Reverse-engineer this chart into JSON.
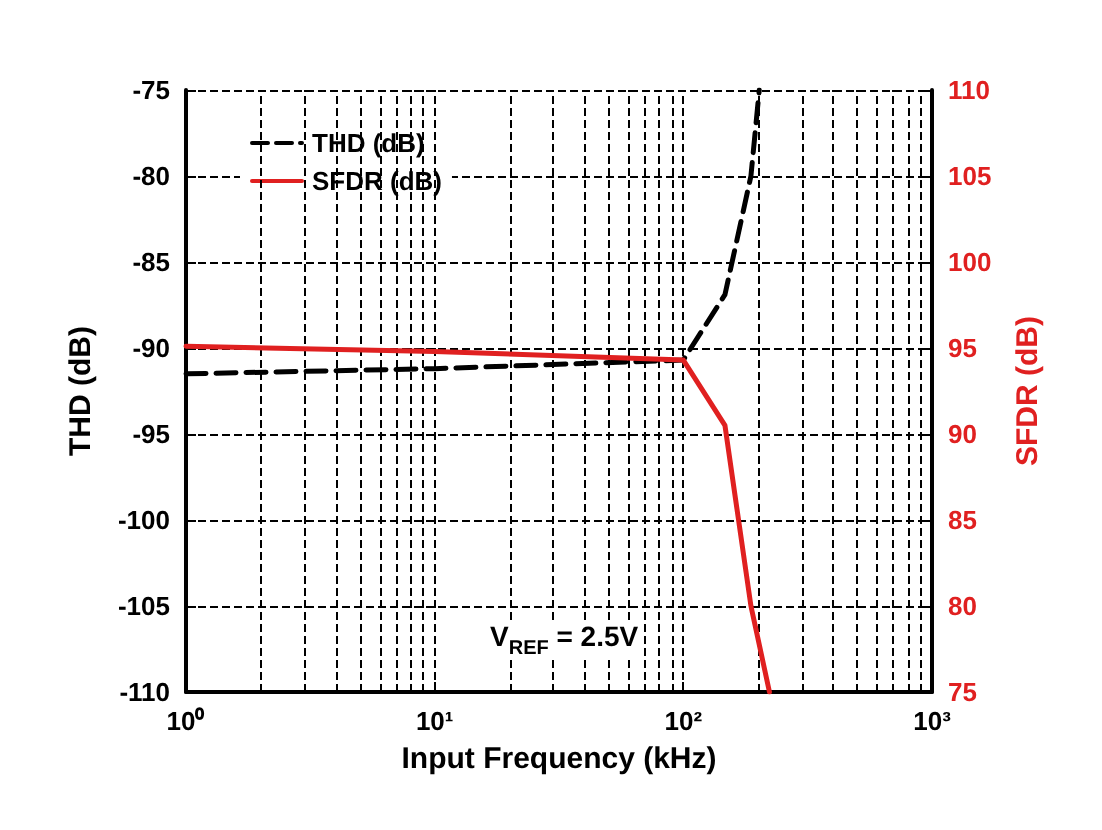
{
  "chart_data": {
    "type": "line",
    "xlabel": "Input Frequency (kHz)",
    "ylabel": "THD (dB)",
    "y2label": "SFDR (dB)",
    "log": "x",
    "grid": true,
    "legend": "top left",
    "marker": "none",
    "xlim": [
      1,
      1000
    ],
    "xticks": [
      {
        "value": 1,
        "label": "10⁰"
      },
      {
        "value": 10,
        "label": "10¹"
      },
      {
        "value": 100,
        "label": "10²"
      },
      {
        "value": 1000,
        "label": "10³"
      }
    ],
    "ylim": [
      -110,
      -75
    ],
    "yticks": [
      -110,
      -105,
      -100,
      -95,
      -90,
      -85,
      -80,
      -75
    ],
    "y2lim": [
      75,
      110
    ],
    "y2ticks": [
      75,
      80,
      85,
      90,
      95,
      100,
      105,
      110
    ],
    "annotations": [
      "V$_{REF}$ = 2.5V"
    ],
    "series": [
      {
        "name": "THD (dB)",
        "color": "#000000",
        "line_style": "dashed",
        "x": [
          1,
          10,
          100,
          147,
          187,
          202
        ],
        "values": [
          -91.5,
          -91.2,
          -90.7,
          -86.9,
          -80,
          -75
        ]
      },
      {
        "name": "SFDR (dB)",
        "color": "#e02020",
        "line_style": "solid",
        "axis": "y2",
        "x": [
          1,
          10,
          100,
          147,
          187,
          222
        ],
        "values": [
          95.1,
          94.8,
          94.3,
          90.5,
          80,
          75
        ]
      }
    ]
  }
}
